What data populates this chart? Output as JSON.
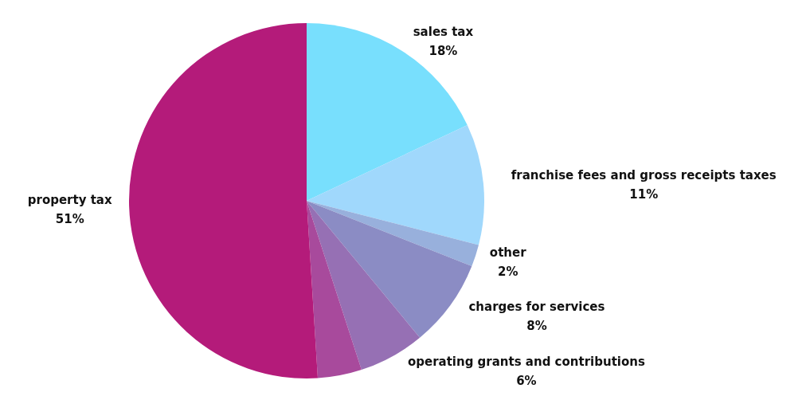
{
  "chart_data": {
    "type": "pie",
    "categories": [
      "sales tax",
      "franchise fees and gross receipts taxes",
      "other",
      "charges for services",
      "operating grants and contributions",
      null,
      "property tax"
    ],
    "values": [
      18,
      11,
      2,
      8,
      6,
      4,
      51
    ],
    "colors": [
      "#78dffd",
      "#a0d8fc",
      "#98b0dc",
      "#8b8cc4",
      "#9670b4",
      "#a84a9c",
      "#b41b7a"
    ],
    "value_labels": [
      "18%",
      "11%",
      "2%",
      "8%",
      "6%",
      null,
      "51%"
    ]
  }
}
